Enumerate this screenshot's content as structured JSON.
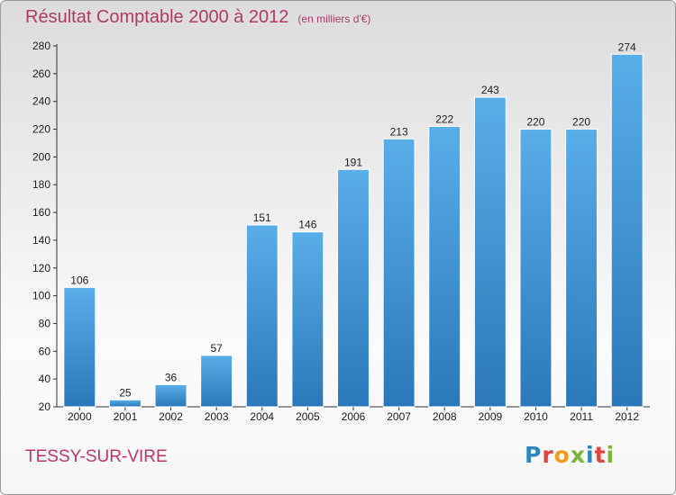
{
  "header": {
    "title": "Résultat Comptable 2000 à 2012",
    "subtitle": "(en milliers d'€)"
  },
  "footer": {
    "commune": "TESSY-SUR-VIRE",
    "brand": "Proxiti"
  },
  "colors": {
    "bar_top": "#5aaee8",
    "bar_bottom": "#2a78b9",
    "axis": "#333333",
    "title": "#b03a66",
    "brand_letters": [
      "#2d85c3",
      "#e2433c",
      "#f39a1e",
      "#7cb534",
      "#2d85c3",
      "#e2433c",
      "#7cb534"
    ]
  },
  "chart_data": {
    "type": "bar",
    "title": "Résultat Comptable 2000 à 2012",
    "subtitle": "(en milliers d'€)",
    "xlabel": "",
    "ylabel": "",
    "categories": [
      "2000",
      "2001",
      "2002",
      "2003",
      "2004",
      "2005",
      "2006",
      "2007",
      "2008",
      "2009",
      "2010",
      "2011",
      "2012"
    ],
    "values": [
      106,
      25,
      36,
      57,
      151,
      146,
      191,
      213,
      222,
      243,
      220,
      220,
      274
    ],
    "data_labels": [
      "106",
      "25",
      "36",
      "57",
      "151",
      "146",
      "191",
      "213",
      "222",
      "243",
      "220",
      "220",
      "274"
    ],
    "ylim": [
      20,
      280
    ],
    "yticks": [
      "20",
      "40",
      "60",
      "80",
      "100",
      "120",
      "140",
      "160",
      "180",
      "200",
      "220",
      "240",
      "260",
      "280"
    ],
    "grid": false,
    "legend": "none"
  }
}
